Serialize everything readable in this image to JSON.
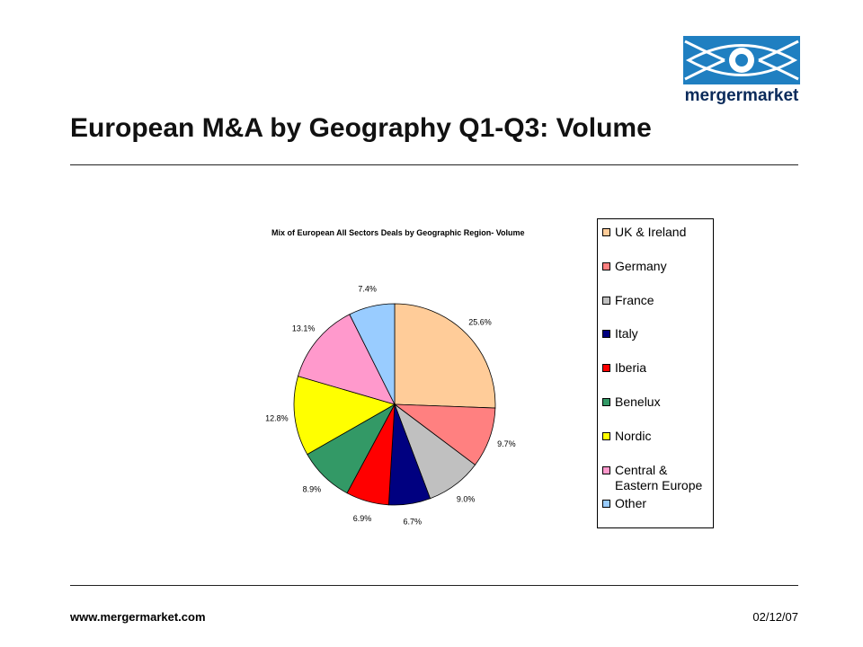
{
  "header": {
    "title": "European M&A by Geography Q1-Q3: Volume",
    "logo_text": "mergermarket"
  },
  "footer": {
    "url": "www.mergermarket.com",
    "date": "02/12/07"
  },
  "chart_data": {
    "type": "pie",
    "title": "Mix of European All Sectors Deals by Geographic Region- Volume",
    "legend_position": "right",
    "slices": [
      {
        "label": "UK & Ireland",
        "value": 25.6,
        "value_label": "25.6%",
        "color": "#FFCC99"
      },
      {
        "label": "Germany",
        "value": 9.7,
        "value_label": "9.7%",
        "color": "#FF8080"
      },
      {
        "label": "France",
        "value": 9.0,
        "value_label": "9.0%",
        "color": "#C0C0C0"
      },
      {
        "label": "Italy",
        "value": 6.7,
        "value_label": "6.7%",
        "color": "#000080"
      },
      {
        "label": "Iberia",
        "value": 6.9,
        "value_label": "6.9%",
        "color": "#FF0000"
      },
      {
        "label": "Benelux",
        "value": 8.9,
        "value_label": "8.9%",
        "color": "#339966"
      },
      {
        "label": "Nordic",
        "value": 12.8,
        "value_label": "12.8%",
        "color": "#FFFF00"
      },
      {
        "label": "Central & Eastern Europe",
        "value": 13.1,
        "value_label": "13.1%",
        "color": "#FF99CC"
      },
      {
        "label": "Other",
        "value": 7.4,
        "value_label": "7.4%",
        "color": "#99CCFF"
      }
    ],
    "legend": [
      {
        "lines": [
          "UK & Ireland"
        ],
        "color": "#FFCC99"
      },
      {
        "lines": [
          "Germany"
        ],
        "color": "#FF8080"
      },
      {
        "lines": [
          "France"
        ],
        "color": "#C0C0C0"
      },
      {
        "lines": [
          "Italy"
        ],
        "color": "#000080"
      },
      {
        "lines": [
          "Iberia"
        ],
        "color": "#FF0000"
      },
      {
        "lines": [
          "Benelux"
        ],
        "color": "#339966"
      },
      {
        "lines": [
          "Nordic"
        ],
        "color": "#FFFF00"
      },
      {
        "lines": [
          "Central &",
          "Eastern Europe"
        ],
        "color": "#FF99CC"
      },
      {
        "lines": [
          "Other"
        ],
        "color": "#99CCFF"
      }
    ]
  }
}
